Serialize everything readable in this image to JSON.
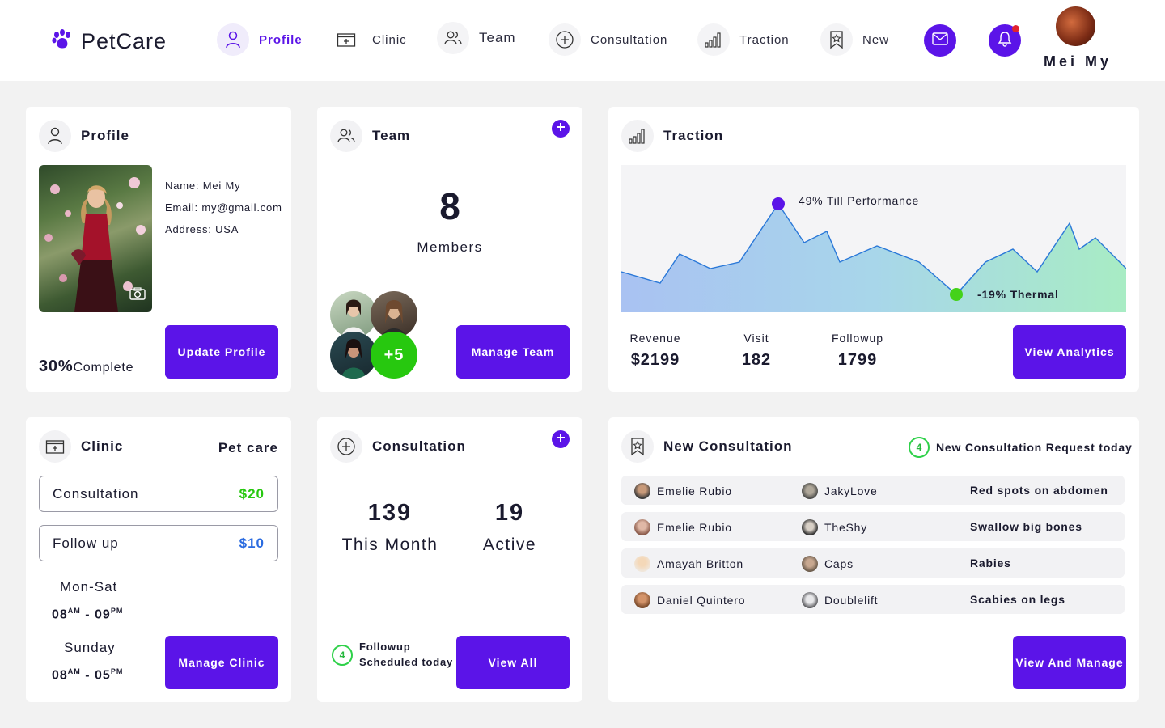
{
  "brand": {
    "name": "PetCare",
    "icon": "paw-icon",
    "color": "#5b14e8"
  },
  "nav": [
    {
      "label": "Profile",
      "icon": "user-icon",
      "active": true
    },
    {
      "label": "Clinic",
      "icon": "clinic-icon"
    },
    {
      "label": "Team",
      "icon": "team-icon"
    },
    {
      "label": "Consultation",
      "icon": "plus-circle-icon"
    },
    {
      "label": "Traction",
      "icon": "signal-bars-icon"
    },
    {
      "label": "New",
      "icon": "bookmark-star-icon"
    }
  ],
  "header": {
    "user_name": "Mei My",
    "mail_icon": "mail-icon",
    "bell_icon": "bell-icon"
  },
  "profile": {
    "title": "Profile",
    "name_line": "Name: Mei My",
    "email_line": "Email: my@gmail.com",
    "address_line": "Address: USA",
    "complete_value": "30%",
    "complete_label": "Complete",
    "button": "Update Profile"
  },
  "team": {
    "title": "Team",
    "count": "8",
    "count_label": "Members",
    "more": "+5",
    "button": "Manage Team"
  },
  "traction": {
    "title": "Traction",
    "peak_label": "49% Till Performance",
    "low_label": "-19% Thermal",
    "stats": [
      {
        "label": "Revenue",
        "value": "$2199"
      },
      {
        "label": "Visit",
        "value": "182"
      },
      {
        "label": "Followup",
        "value": "1799"
      }
    ],
    "button": "View Analytics"
  },
  "clinic": {
    "title": "Clinic",
    "subtitle": "Pet care",
    "prices": [
      {
        "name": "Consultation",
        "value": "$20",
        "color": "#27c80f"
      },
      {
        "name": "Follow up",
        "value": "$10",
        "color": "#2a6be0"
      }
    ],
    "schedule": [
      {
        "day": "Mon-Sat",
        "open": "08",
        "open_suffix": "AM",
        "close": "09",
        "close_suffix": "PM"
      },
      {
        "day": "Sunday",
        "open": "08",
        "open_suffix": "AM",
        "close": "05",
        "close_suffix": "PM"
      }
    ],
    "button": "Manage Clinic"
  },
  "consultation": {
    "title": "Consultation",
    "month_value": "139",
    "month_label": "This Month",
    "active_value": "19",
    "active_label": "Active",
    "followup_count": "4",
    "followup_line1": "Followup",
    "followup_line2": "Scheduled today",
    "button": "View All"
  },
  "new_consultation": {
    "title": "New Consultation",
    "request_count": "4",
    "request_label": "New Consultation Request today",
    "rows": [
      {
        "owner": "Emelie Rubio",
        "pet": "JakyLove",
        "issue": "Red spots on abdomen"
      },
      {
        "owner": "Emelie Rubio",
        "pet": "TheShy",
        "issue": "Swallow big bones"
      },
      {
        "owner": "Amayah Britton",
        "pet": "Caps",
        "issue": "Rabies"
      },
      {
        "owner": "Daniel Quintero",
        "pet": "Doublelift",
        "issue": "Scabies on legs"
      }
    ],
    "button": "View And Manage"
  },
  "colors": {
    "accent": "#5b14e8",
    "success": "#27c80f",
    "background": "#f2f2f2"
  }
}
